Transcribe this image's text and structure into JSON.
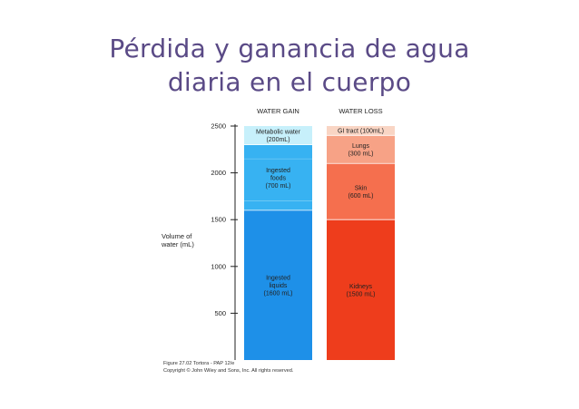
{
  "slide": {
    "title_line1": "Pérdida y ganancia de agua",
    "title_line2": "diaria en el cuerpo"
  },
  "chart_data": {
    "type": "bar",
    "stacked": true,
    "ylabel_line1": "Volume of",
    "ylabel_line2": "water (mL)",
    "ylim": [
      0,
      2500
    ],
    "yticks": [
      500,
      1000,
      1500,
      2000,
      2500
    ],
    "categories": [
      "WATER GAIN",
      "WATER LOSS"
    ],
    "bars": [
      {
        "category": "WATER GAIN",
        "segments": [
          {
            "lines": [
              "Ingested",
              "liquids",
              "(1600 mL)"
            ],
            "value": 1600,
            "color": "#1e90e8"
          },
          {
            "lines": [
              "Ingested",
              "foods",
              "(700 mL)"
            ],
            "value": 700,
            "color": "#37b2f2"
          },
          {
            "lines": [
              "Metabolic water",
              "(200mL)"
            ],
            "value": 200,
            "color": "#c7f0fb"
          }
        ]
      },
      {
        "category": "WATER LOSS",
        "segments": [
          {
            "lines": [
              "Kidneys",
              "(1500 mL)"
            ],
            "value": 1500,
            "color": "#ee3d1c"
          },
          {
            "lines": [
              "Skin",
              "(600 mL)"
            ],
            "value": 600,
            "color": "#f56f4e"
          },
          {
            "lines": [
              "Lungs",
              "(300 mL)"
            ],
            "value": 300,
            "color": "#f7a286"
          },
          {
            "lines": [
              "GI tract (100mL)"
            ],
            "value": 100,
            "color": "#f9d5c4"
          }
        ]
      }
    ],
    "caption_line1": "Figure 27.02  Tortora - PAP 12/e",
    "caption_line2": "Copyright © John Wiley and Sons, Inc. All rights reserved."
  }
}
